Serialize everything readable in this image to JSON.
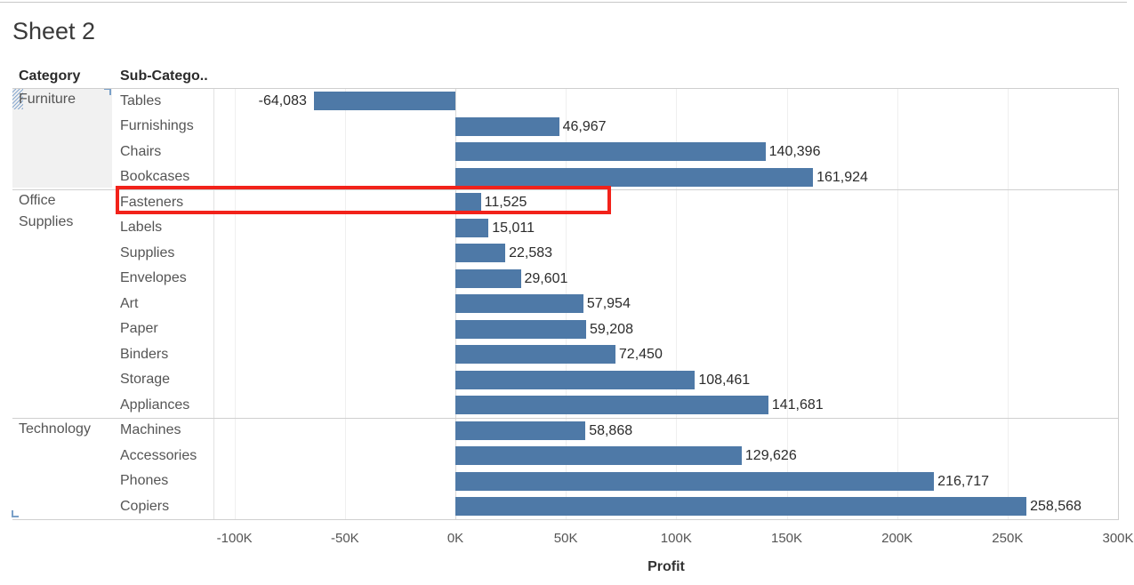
{
  "sheet": {
    "title": "Sheet 2"
  },
  "headers": {
    "category": "Category",
    "subcategory": "Sub-Catego.."
  },
  "colors": {
    "bar": "#4e79a7",
    "highlight": "#f2221a"
  },
  "chart_data": {
    "type": "bar",
    "orientation": "horizontal",
    "xlabel": "Profit",
    "xlim": [
      -100000,
      300000
    ],
    "x_ticks": [
      "-100K",
      "-50K",
      "0K",
      "50K",
      "100K",
      "150K",
      "200K",
      "250K",
      "300K"
    ],
    "grid": true,
    "groups": [
      {
        "category": "Furniture",
        "category_display": "Furniture",
        "rows": [
          {
            "subcategory": "Tables",
            "value": -64083,
            "label": "-64,083"
          },
          {
            "subcategory": "Furnishings",
            "value": 46967,
            "label": "46,967"
          },
          {
            "subcategory": "Chairs",
            "value": 140396,
            "label": "140,396"
          },
          {
            "subcategory": "Bookcases",
            "value": 161924,
            "label": "161,924"
          }
        ]
      },
      {
        "category": "Office Supplies",
        "category_display": "Office\nSupplies",
        "rows": [
          {
            "subcategory": "Fasteners",
            "value": 11525,
            "label": "11,525",
            "highlighted": true
          },
          {
            "subcategory": "Labels",
            "value": 15011,
            "label": "15,011"
          },
          {
            "subcategory": "Supplies",
            "value": 22583,
            "label": "22,583"
          },
          {
            "subcategory": "Envelopes",
            "value": 29601,
            "label": "29,601"
          },
          {
            "subcategory": "Art",
            "value": 57954,
            "label": "57,954"
          },
          {
            "subcategory": "Paper",
            "value": 59208,
            "label": "59,208"
          },
          {
            "subcategory": "Binders",
            "value": 72450,
            "label": "72,450"
          },
          {
            "subcategory": "Storage",
            "value": 108461,
            "label": "108,461"
          },
          {
            "subcategory": "Appliances",
            "value": 141681,
            "label": "141,681"
          }
        ]
      },
      {
        "category": "Technology",
        "category_display": "Technology",
        "rows": [
          {
            "subcategory": "Machines",
            "value": 58868,
            "label": "58,868"
          },
          {
            "subcategory": "Accessories",
            "value": 129626,
            "label": "129,626"
          },
          {
            "subcategory": "Phones",
            "value": 216717,
            "label": "216,717"
          },
          {
            "subcategory": "Copiers",
            "value": 258568,
            "label": "258,568"
          }
        ]
      }
    ]
  }
}
